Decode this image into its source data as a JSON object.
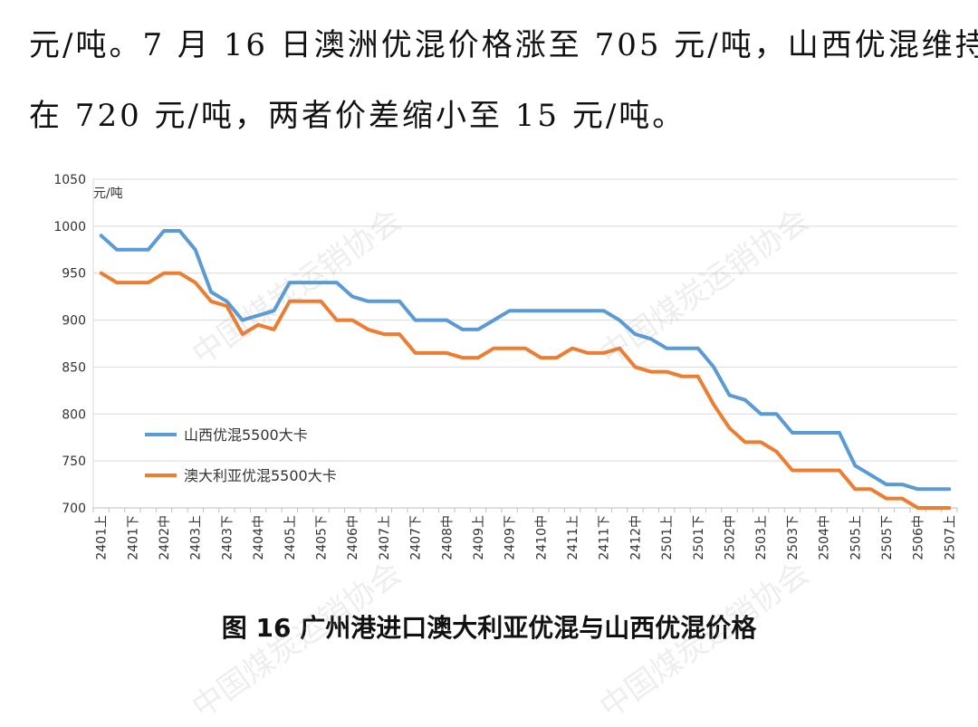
{
  "paragraph": {
    "line1": "元/吨。7 月 16 日澳洲优混价格涨至 705 元/吨，山西优混维持",
    "line2": "在 720 元/吨，两者价差缩小至 15 元/吨。"
  },
  "caption": "图 16   广州港进口澳大利亚优混与山西优混价格",
  "watermark": "中国煤炭运销协会",
  "chart_data": {
    "type": "line",
    "title": "",
    "ylabel": "元/吨",
    "xlabel": "",
    "ylim": [
      700,
      1050
    ],
    "y_ticks": [
      700,
      750,
      800,
      850,
      900,
      950,
      1000,
      1050
    ],
    "grid": true,
    "legend_position": "lower-left",
    "x": [
      "2401上",
      "2401中",
      "2401下",
      "2402上",
      "2402中",
      "2402下",
      "2403上",
      "2403中",
      "2403下",
      "2404上",
      "2404中",
      "2404下",
      "2405上",
      "2405中",
      "2405下",
      "2406上",
      "2406中",
      "2406下",
      "2407上",
      "2407中",
      "2407下",
      "2408上",
      "2408中",
      "2408下",
      "2409上",
      "2409中",
      "2409下",
      "2410上",
      "2410中",
      "2410下",
      "2411上",
      "2411中",
      "2411下",
      "2412上",
      "2412中",
      "2412下",
      "2501上",
      "2501中",
      "2501下",
      "2502上",
      "2502中",
      "2502下",
      "2503上",
      "2503中",
      "2503下",
      "2504上",
      "2504中",
      "2504下",
      "2505上",
      "2505中",
      "2505下",
      "2506上",
      "2506中",
      "2506下",
      "2507上"
    ],
    "x_tick_labels": [
      "2401上",
      "2401下",
      "2402中",
      "2403上",
      "2403下",
      "2404中",
      "2405上",
      "2405下",
      "2406中",
      "2407上",
      "2407下",
      "2408中",
      "2409上",
      "2409下",
      "2410中",
      "2411上",
      "2411下",
      "2412中",
      "2501上",
      "2501下",
      "2502中",
      "2503上",
      "2503下",
      "2504中",
      "2505上",
      "2505下",
      "2506中",
      "2507上"
    ],
    "series": [
      {
        "name": "山西优混5500大卡",
        "color": "#5B9BD5",
        "values": [
          990,
          975,
          975,
          975,
          995,
          995,
          975,
          930,
          920,
          900,
          905,
          910,
          940,
          940,
          940,
          940,
          925,
          920,
          920,
          920,
          900,
          900,
          900,
          890,
          890,
          900,
          910,
          910,
          910,
          910,
          910,
          910,
          910,
          900,
          885,
          880,
          870,
          870,
          870,
          850,
          820,
          815,
          800,
          800,
          780,
          780,
          780,
          780,
          745,
          735,
          725,
          725,
          720,
          720,
          720
        ]
      },
      {
        "name": "澳大利亚优混5500大卡",
        "color": "#ED7D31",
        "values": [
          950,
          940,
          940,
          940,
          950,
          950,
          940,
          920,
          915,
          885,
          895,
          890,
          920,
          920,
          920,
          900,
          900,
          890,
          885,
          885,
          865,
          865,
          865,
          860,
          860,
          870,
          870,
          870,
          860,
          860,
          870,
          865,
          865,
          870,
          850,
          845,
          845,
          840,
          840,
          810,
          785,
          770,
          770,
          760,
          740,
          740,
          740,
          740,
          720,
          720,
          710,
          710,
          700,
          700,
          700
        ]
      }
    ]
  }
}
